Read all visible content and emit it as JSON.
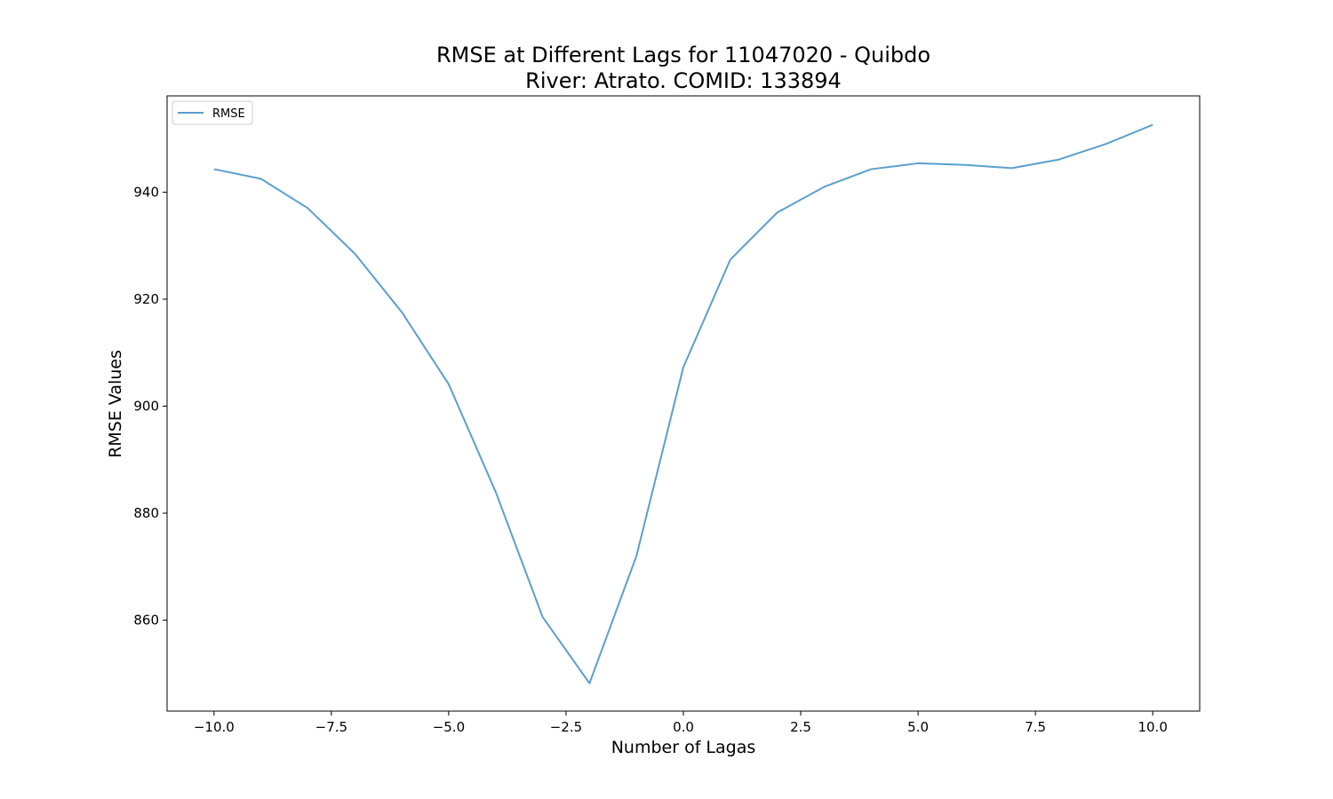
{
  "chart_data": {
    "type": "line",
    "title": "RMSE at Different Lags for 11047020 - Quibdo",
    "subtitle": "River: Atrato. COMID: 133894",
    "xlabel": "Number of Lagas",
    "ylabel": "RMSE Values",
    "xlim": [
      -11,
      11
    ],
    "ylim": [
      843,
      958
    ],
    "x_ticks": [
      -10.0,
      -7.5,
      -5.0,
      -2.5,
      0.0,
      2.5,
      5.0,
      7.5,
      10.0
    ],
    "x_tick_labels": [
      "−10.0",
      "−7.5",
      "−5.0",
      "−2.5",
      "0.0",
      "2.5",
      "5.0",
      "7.5",
      "10.0"
    ],
    "y_ticks": [
      860,
      880,
      900,
      920,
      940
    ],
    "y_tick_labels": [
      "860",
      "880",
      "900",
      "920",
      "940"
    ],
    "grid": false,
    "legend_position": "upper-left",
    "series": [
      {
        "name": "RMSE",
        "color": "#5b9fcd",
        "x": [
          -10,
          -9,
          -8,
          -7,
          -6,
          -5,
          -4,
          -3,
          -2,
          -1,
          0,
          1,
          2,
          3,
          4,
          5,
          6,
          7,
          8,
          9,
          10
        ],
        "values": [
          944.3,
          942.5,
          937.0,
          928.5,
          917.6,
          904.1,
          884.0,
          860.6,
          848.2,
          872.0,
          907.3,
          927.4,
          936.2,
          941.0,
          944.3,
          945.4,
          945.1,
          944.5,
          946.1,
          949.0,
          952.6
        ]
      }
    ]
  }
}
